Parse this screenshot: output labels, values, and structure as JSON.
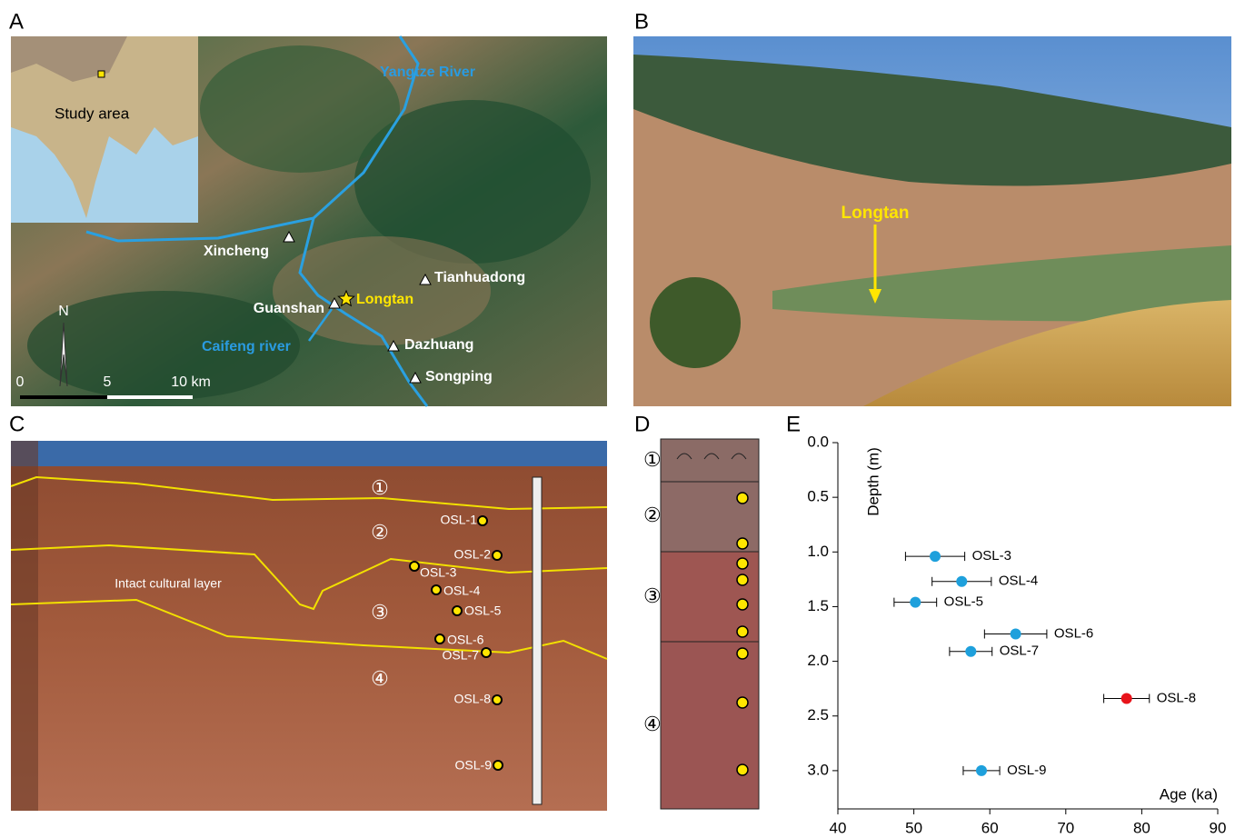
{
  "panels": {
    "a": {
      "label": "A",
      "inset_label": "Study area",
      "places": [
        "Yangtze River",
        "Xincheng",
        "Tianhuadong",
        "Guanshan",
        "Longtan",
        "Caifeng river",
        "Dazhuang",
        "Songping"
      ],
      "north": "N",
      "scale": [
        "0",
        "5",
        "10 km"
      ]
    },
    "b": {
      "label": "B",
      "site": "Longtan"
    },
    "c": {
      "label": "C",
      "layers": [
        "①",
        "②",
        "③",
        "④"
      ],
      "annotation": "Intact cultural layer",
      "samples": [
        "OSL-1",
        "OSL-2",
        "OSL-3",
        "OSL-4",
        "OSL-5",
        "OSL-6",
        "OSL-7",
        "OSL-8",
        "OSL-9"
      ]
    },
    "d": {
      "label": "D",
      "layers": [
        "①",
        "②",
        "③",
        "④"
      ]
    },
    "e": {
      "label": "E"
    }
  },
  "chart_data": {
    "type": "scatter",
    "x_label": "Age (ka)",
    "y_label": "Depth (m)",
    "xlim": [
      40,
      90
    ],
    "xticks": [
      40,
      50,
      60,
      70,
      80,
      90
    ],
    "ylim": [
      0,
      3.35
    ],
    "y_inverted": true,
    "yticks": [
      {
        "value": 0,
        "label": "0.0"
      },
      0.5,
      {
        "value": 1,
        "label": "1.0"
      },
      1.5,
      {
        "value": 2,
        "label": "2.0"
      },
      2.5,
      {
        "value": 3,
        "label": "3.0"
      }
    ],
    "points": [
      {
        "label": "OSL-3",
        "x": 52.8,
        "y": 1.04,
        "error": 3.9,
        "color": "#1ea0dc"
      },
      {
        "label": "OSL-4",
        "x": 56.3,
        "y": 1.27,
        "error": 3.9,
        "color": "#1ea0dc"
      },
      {
        "label": "OSL-5",
        "x": 50.2,
        "y": 1.46,
        "error": 2.8,
        "color": "#1ea0dc"
      },
      {
        "label": "OSL-6",
        "x": 63.4,
        "y": 1.75,
        "error": 4.1,
        "color": "#1ea0dc"
      },
      {
        "label": "OSL-7",
        "x": 57.5,
        "y": 1.91,
        "error": 2.8,
        "color": "#1ea0dc"
      },
      {
        "label": "OSL-8",
        "x": 78.0,
        "y": 2.34,
        "error": 3.0,
        "color": "#e8141b"
      },
      {
        "label": "OSL-9",
        "x": 58.9,
        "y": 3.0,
        "error": 2.4,
        "color": "#1ea0dc"
      }
    ]
  }
}
